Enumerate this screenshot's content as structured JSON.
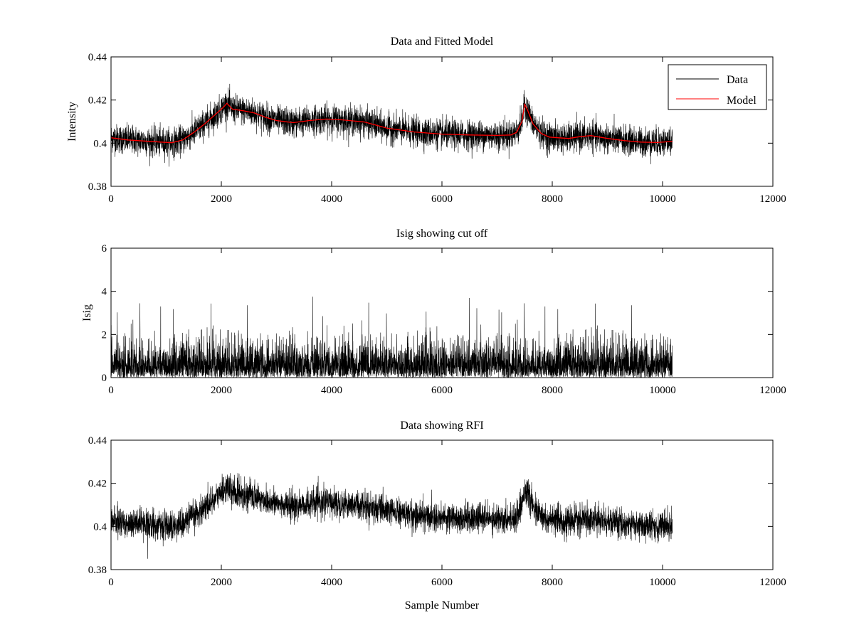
{
  "chart_data": [
    {
      "type": "line",
      "title": "Data and Fitted Model",
      "xlabel": "",
      "ylabel": "Intensity",
      "xlim": [
        0,
        12000
      ],
      "ylim": [
        0.38,
        0.44
      ],
      "xticks": [
        0,
        2000,
        4000,
        6000,
        8000,
        10000,
        12000
      ],
      "xtick_labels": [
        "0",
        "2000",
        "4000",
        "6000",
        "8000",
        "10000",
        "12000"
      ],
      "yticks": [
        0.38,
        0.4,
        0.42,
        0.44
      ],
      "ytick_labels": [
        "0.38",
        "0.4",
        "0.42",
        "0.44"
      ],
      "legend": {
        "position": "top-right",
        "entries": [
          "Data",
          "Model"
        ]
      },
      "n_samples": 10180,
      "series": [
        {
          "name": "Data",
          "color": "#000000",
          "noise_sd": 0.0033,
          "follows_model": true
        },
        {
          "name": "Model",
          "color": "#ff0000",
          "x": [
            0,
            300,
            600,
            900,
            1100,
            1300,
            1500,
            1700,
            1900,
            2050,
            2100,
            2200,
            2400,
            2600,
            2800,
            3000,
            3300,
            3600,
            3900,
            4200,
            4600,
            5000,
            5500,
            6000,
            6500,
            7000,
            7250,
            7350,
            7450,
            7500,
            7550,
            7650,
            7800,
            7950,
            8100,
            8300,
            8500,
            8700,
            9000,
            9300,
            9600,
            9900,
            10180
          ],
          "values": [
            0.4025,
            0.4015,
            0.401,
            0.4005,
            0.4002,
            0.4015,
            0.405,
            0.409,
            0.4135,
            0.417,
            0.4185,
            0.4158,
            0.415,
            0.414,
            0.412,
            0.4105,
            0.4095,
            0.4105,
            0.4112,
            0.4108,
            0.4098,
            0.407,
            0.4052,
            0.4042,
            0.4038,
            0.4036,
            0.4038,
            0.405,
            0.41,
            0.418,
            0.4155,
            0.409,
            0.4045,
            0.4028,
            0.4025,
            0.4022,
            0.403,
            0.4035,
            0.4022,
            0.4012,
            0.4005,
            0.4003,
            0.4008
          ]
        }
      ]
    },
    {
      "type": "line",
      "title": "Isig showing cut off",
      "xlabel": "",
      "ylabel": "Isig",
      "xlim": [
        0,
        12000
      ],
      "ylim": [
        0,
        6
      ],
      "xticks": [
        0,
        2000,
        4000,
        6000,
        8000,
        10000,
        12000
      ],
      "xtick_labels": [
        "0",
        "2000",
        "4000",
        "6000",
        "8000",
        "10000",
        "12000"
      ],
      "yticks": [
        0,
        2,
        4,
        6
      ],
      "ytick_labels": [
        "0",
        "2",
        "4",
        "6"
      ],
      "n_samples": 10180,
      "series": [
        {
          "name": "Isig",
          "color": "#000000",
          "peak_max": 3.75
        }
      ]
    },
    {
      "type": "line",
      "title": "Data showing RFI",
      "xlabel": "Sample Number",
      "ylabel": "",
      "xlim": [
        0,
        12000
      ],
      "ylim": [
        0.38,
        0.44
      ],
      "xticks": [
        0,
        2000,
        4000,
        6000,
        8000,
        10000,
        12000
      ],
      "xtick_labels": [
        "0",
        "2000",
        "4000",
        "6000",
        "8000",
        "10000",
        "12000"
      ],
      "yticks": [
        0.38,
        0.4,
        0.42,
        0.44
      ],
      "ytick_labels": [
        "0.38",
        "0.4",
        "0.42",
        "0.44"
      ],
      "n_samples": 10180,
      "series": [
        {
          "name": "Data",
          "color": "#000000",
          "noise_sd": 0.0033,
          "follows_model": true
        }
      ]
    }
  ]
}
